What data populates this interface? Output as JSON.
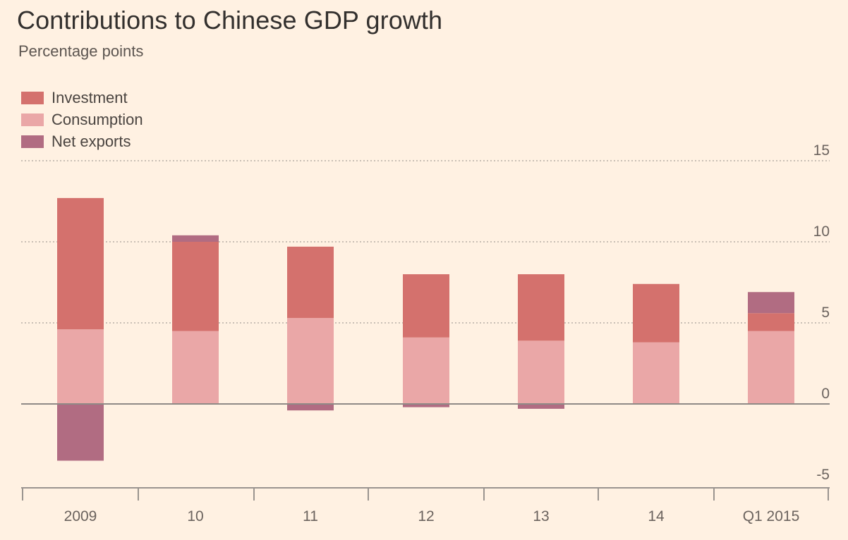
{
  "title": "Contributions to Chinese GDP growth",
  "subtitle": "Percentage points",
  "colors": {
    "background": "#fff1e2",
    "investment": "#d4716d",
    "consumption": "#eaa7a7",
    "net_exports": "#b16c82",
    "grid": "#c9bfb5",
    "zero_line": "#8f8a86"
  },
  "legend": [
    {
      "label": "Investment",
      "color": "#d4716d"
    },
    {
      "label": "Consumption",
      "color": "#eaa7a7"
    },
    {
      "label": "Net exports",
      "color": "#b16c82"
    }
  ],
  "chart_data": {
    "type": "bar",
    "stacked": true,
    "title": "Contributions to Chinese GDP growth",
    "subtitle": "Percentage points",
    "xlabel": "",
    "ylabel": "",
    "categories": [
      "2009",
      "10",
      "11",
      "12",
      "13",
      "14",
      "Q1 2015"
    ],
    "series": [
      {
        "name": "Consumption",
        "color": "#eaa7a7",
        "values": [
          4.6,
          4.5,
          5.3,
          4.1,
          3.9,
          3.8,
          4.5
        ]
      },
      {
        "name": "Investment",
        "color": "#d4716d",
        "values": [
          8.1,
          5.5,
          4.4,
          3.9,
          4.1,
          3.6,
          1.1
        ]
      },
      {
        "name": "Net exports",
        "color": "#b16c82",
        "values": [
          -3.5,
          0.4,
          -0.4,
          -0.2,
          -0.3,
          0.0,
          1.3
        ]
      }
    ],
    "ylim": [
      -5,
      15
    ],
    "yticks": [
      -5,
      0,
      5,
      10,
      15
    ],
    "y_axis_side": "right",
    "grid": true,
    "legend_position": "top-left"
  }
}
